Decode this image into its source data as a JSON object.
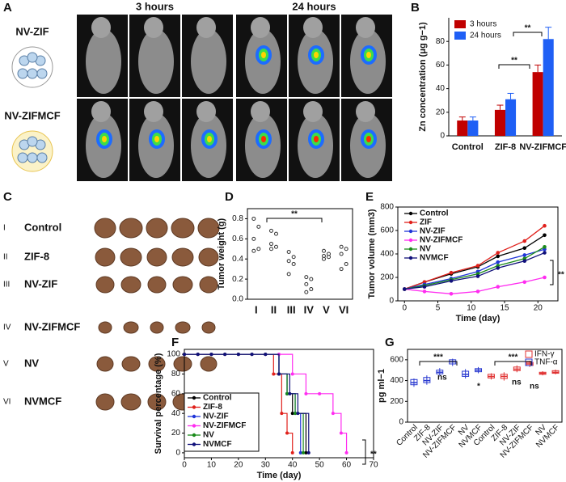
{
  "panel_a": {
    "label": "A",
    "columns": [
      "3 hours",
      "24 hours"
    ],
    "rows": [
      "NV-ZIF",
      "NV-ZIFMCF"
    ]
  },
  "panel_c": {
    "label": "C",
    "rows": [
      {
        "numeral": "I",
        "name": "Control"
      },
      {
        "numeral": "II",
        "name": "ZIF-8"
      },
      {
        "numeral": "III",
        "name": "NV-ZIF"
      },
      {
        "numeral": "IV",
        "name": "NV-ZIFMCF"
      },
      {
        "numeral": "V",
        "name": "NV"
      },
      {
        "numeral": "VI",
        "name": "NVMCF"
      }
    ]
  },
  "chart_data": [
    {
      "label": "B",
      "type": "bar",
      "categories": [
        "Control",
        "ZIF-8",
        "NV-ZIFMCF"
      ],
      "series": [
        {
          "name": "3 hours",
          "color": "#c00000",
          "values": [
            13,
            22,
            54
          ],
          "errors": [
            3,
            4,
            6
          ]
        },
        {
          "name": "24 hours",
          "color": "#1f5ff5",
          "values": [
            13,
            31,
            82
          ],
          "errors": [
            3,
            5,
            10
          ]
        }
      ],
      "ylabel": "Zn concentration (μg g−1)",
      "ylim": [
        0,
        100
      ],
      "yticks": [
        0,
        20,
        40,
        60,
        80
      ],
      "annotations": [
        "**",
        "**"
      ]
    },
    {
      "label": "D",
      "type": "strip",
      "categories": [
        "I",
        "II",
        "III",
        "IV",
        "V",
        "VI"
      ],
      "values": [
        [
          0.8,
          0.72,
          0.6,
          0.5,
          0.48
        ],
        [
          0.68,
          0.65,
          0.55,
          0.52,
          0.5
        ],
        [
          0.47,
          0.42,
          0.38,
          0.35,
          0.25
        ],
        [
          0.22,
          0.2,
          0.15,
          0.1,
          0.07
        ],
        [
          0.48,
          0.45,
          0.43,
          0.42,
          0.4
        ],
        [
          0.52,
          0.5,
          0.45,
          0.35,
          0.3
        ]
      ],
      "ylabel": "Tumor weight (g)",
      "ylim": [
        0,
        0.9
      ],
      "yticks": [
        {
          "value": 0,
          "label": "0.0"
        },
        0.2,
        0.4,
        0.6,
        0.8
      ],
      "annotations": [
        "**"
      ]
    },
    {
      "label": "E",
      "type": "line",
      "x": [
        0,
        3,
        7,
        11,
        14,
        18,
        21
      ],
      "xlim": [
        -1,
        23
      ],
      "xticks": [
        0,
        5,
        10,
        15,
        20
      ],
      "xlabel": "Time (day)",
      "ylabel": "Tumor volume (mm3)",
      "ylim": [
        0,
        800
      ],
      "yticks": [
        0,
        200,
        400,
        600,
        800
      ],
      "series": [
        {
          "name": "Control",
          "color": "#000000",
          "values": [
            100,
            160,
            230,
            290,
            380,
            450,
            560
          ]
        },
        {
          "name": "ZIF",
          "color": "#e0201b",
          "values": [
            100,
            160,
            240,
            300,
            410,
            510,
            640
          ]
        },
        {
          "name": "NV-ZIF",
          "color": "#2036d8",
          "values": [
            100,
            140,
            190,
            250,
            330,
            390,
            440
          ]
        },
        {
          "name": "NV-ZIFMCF",
          "color": "#ff2cf0",
          "values": [
            100,
            80,
            60,
            80,
            120,
            160,
            200
          ]
        },
        {
          "name": "NV",
          "color": "#1a8a1a",
          "values": [
            100,
            130,
            180,
            230,
            300,
            360,
            460
          ]
        },
        {
          "name": "NVMCF",
          "color": "#10107a",
          "values": [
            100,
            120,
            170,
            210,
            280,
            340,
            410
          ]
        }
      ],
      "annotations": [
        "**"
      ]
    },
    {
      "label": "F",
      "type": "step",
      "xlim": [
        0,
        70
      ],
      "xticks": [
        0,
        10,
        20,
        30,
        40,
        50,
        60,
        70
      ],
      "xlabel": "Time (day)",
      "ylabel": "Survival percentage (%)",
      "ylim": [
        -5,
        105
      ],
      "yticks": [
        0,
        20,
        40,
        60,
        80,
        100
      ],
      "series": [
        {
          "name": "Control",
          "color": "#000000",
          "x": [
            0,
            5,
            10,
            15,
            20,
            25,
            30,
            35,
            38,
            40,
            45
          ],
          "values": [
            100,
            100,
            100,
            100,
            100,
            100,
            100,
            80,
            60,
            40,
            0
          ]
        },
        {
          "name": "ZIF-8",
          "color": "#e0201b",
          "x": [
            0,
            5,
            10,
            15,
            20,
            25,
            30,
            33,
            36,
            38,
            40
          ],
          "values": [
            100,
            100,
            100,
            100,
            100,
            100,
            100,
            80,
            40,
            20,
            0
          ]
        },
        {
          "name": "NV-ZIF",
          "color": "#2036d8",
          "x": [
            0,
            5,
            10,
            15,
            20,
            25,
            30,
            35,
            38,
            41,
            43
          ],
          "values": [
            100,
            100,
            100,
            100,
            100,
            100,
            100,
            80,
            60,
            40,
            0
          ]
        },
        {
          "name": "NV-ZIFMCF",
          "color": "#ff2cf0",
          "x": [
            0,
            5,
            10,
            15,
            20,
            25,
            30,
            35,
            40,
            45,
            50,
            55,
            58,
            60
          ],
          "values": [
            100,
            100,
            100,
            100,
            100,
            100,
            100,
            100,
            80,
            60,
            60,
            40,
            20,
            0
          ]
        },
        {
          "name": "NV",
          "color": "#1a8a1a",
          "x": [
            0,
            5,
            10,
            15,
            20,
            25,
            30,
            35,
            38,
            41,
            44
          ],
          "values": [
            100,
            100,
            100,
            100,
            100,
            100,
            100,
            80,
            60,
            40,
            0
          ]
        },
        {
          "name": "NVMCF",
          "color": "#10107a",
          "x": [
            0,
            5,
            10,
            15,
            20,
            25,
            30,
            35,
            39,
            42,
            46
          ],
          "values": [
            100,
            100,
            100,
            100,
            100,
            100,
            100,
            80,
            60,
            40,
            0
          ]
        }
      ],
      "annotations": [
        "**"
      ]
    },
    {
      "label": "G",
      "type": "box",
      "categories": [
        "Control",
        "ZIF-8",
        "NV-ZIF",
        "NV-ZIFMCF",
        "NV",
        "NVMCF",
        "Control",
        "ZIF-8",
        "NV-ZIF",
        "NV-ZIFMCF",
        "NV",
        "NVMCF"
      ],
      "ylabel": "pg ml−1",
      "ylim": [
        0,
        700
      ],
      "yticks": [
        0,
        200,
        400,
        600
      ],
      "series": [
        {
          "name": "IFN-γ",
          "color": "#e03030",
          "values": [
            null,
            null,
            null,
            null,
            null,
            null,
            [
              410,
              425,
              440,
              460,
              470
            ],
            [
              400,
              420,
              440,
              460,
              480
            ],
            [
              480,
              495,
              510,
              530,
              545
            ],
            [
              530,
              545,
              560,
              575,
              590
            ],
            [
              450,
              460,
              470,
              480,
              490
            ],
            [
              460,
              470,
              480,
              495,
              505
            ]
          ]
        },
        {
          "name": "TNF-α",
          "color": "#2a3ad0",
          "values": [
            [
              340,
              360,
              380,
              410,
              420
            ],
            [
              360,
              380,
              400,
              430,
              450
            ],
            [
              450,
              465,
              480,
              500,
              520
            ],
            [
              540,
              560,
              580,
              600,
              610
            ],
            [
              420,
              440,
              460,
              490,
              510
            ],
            [
              470,
              485,
              500,
              515,
              530
            ],
            null,
            null,
            null,
            null,
            null,
            null
          ]
        }
      ],
      "annotations": [
        "***",
        "***",
        "ns",
        "ns",
        "ns",
        "*"
      ]
    }
  ]
}
